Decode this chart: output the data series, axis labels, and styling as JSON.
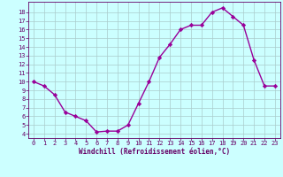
{
  "x": [
    0,
    1,
    2,
    3,
    4,
    5,
    6,
    7,
    8,
    9,
    10,
    11,
    12,
    13,
    14,
    15,
    16,
    17,
    18,
    19,
    20,
    21,
    22,
    23
  ],
  "y": [
    10,
    9.5,
    8.5,
    6.5,
    6,
    5.5,
    4.2,
    4.3,
    4.3,
    5,
    7.5,
    10,
    12.8,
    14.3,
    16,
    16.5,
    16.5,
    18,
    18.5,
    17.5,
    16.5,
    12.5,
    9.5,
    9.5
  ],
  "line_color": "#990099",
  "marker": "D",
  "markersize": 2.2,
  "bg_color": "#ccffff",
  "grid_color": "#aacccc",
  "xlabel": "Windchill (Refroidissement éolien,°C)",
  "xlabel_color": "#660066",
  "tick_color": "#660066",
  "spine_color": "#660066",
  "xlim": [
    -0.5,
    23.5
  ],
  "ylim": [
    3.5,
    19.2
  ],
  "yticks": [
    4,
    5,
    6,
    7,
    8,
    9,
    10,
    11,
    12,
    13,
    14,
    15,
    16,
    17,
    18
  ],
  "xticks": [
    0,
    1,
    2,
    3,
    4,
    5,
    6,
    7,
    8,
    9,
    10,
    11,
    12,
    13,
    14,
    15,
    16,
    17,
    18,
    19,
    20,
    21,
    22,
    23
  ],
  "font_family": "monospace",
  "tick_fontsize": 5.0,
  "xlabel_fontsize": 5.5,
  "linewidth": 1.0
}
